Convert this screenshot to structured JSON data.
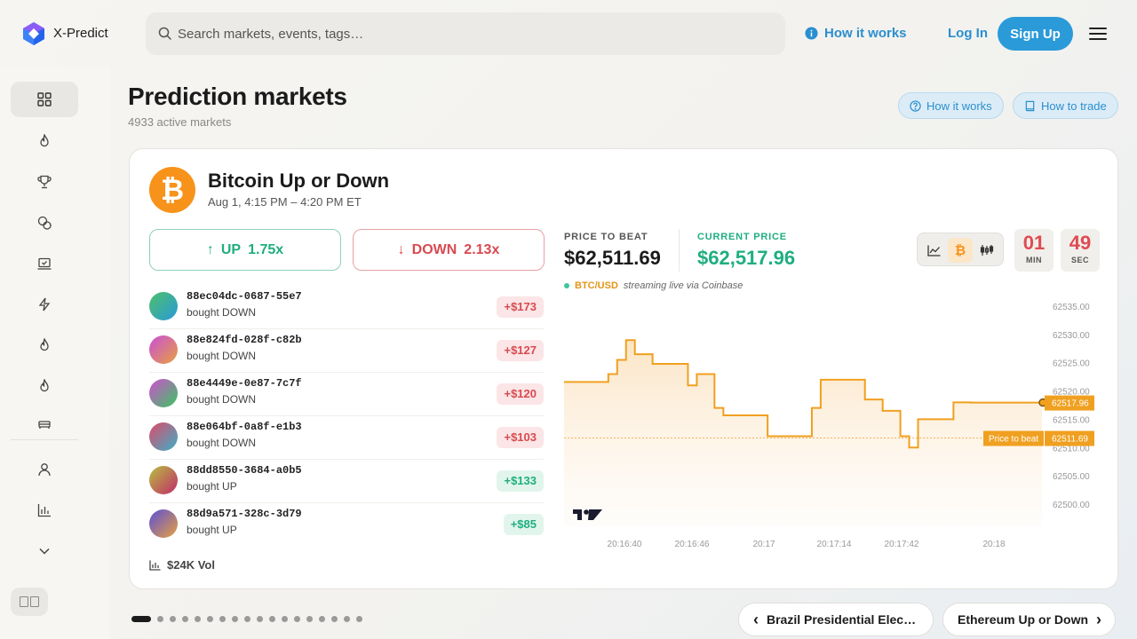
{
  "app": {
    "brand": "X-Predict"
  },
  "search": {
    "placeholder": "Search markets, events, tags…"
  },
  "header": {
    "how_it_works": "How it works",
    "login": "Log In",
    "signup": "Sign Up"
  },
  "page": {
    "title": "Prediction markets",
    "subtitle": "4933 active markets",
    "pill_how": "How it works",
    "pill_trade": "How to trade"
  },
  "market": {
    "title": "Bitcoin Up or Down",
    "date": "Aug 1, 4:15 PM – 4:20 PM ET",
    "up_label": "UP",
    "up_odds": "1.75x",
    "up_arrow": "↑",
    "down_label": "DOWN",
    "down_odds": "2.13x",
    "down_arrow": "↓",
    "volume": "$24K Vol",
    "price_to_beat_label": "PRICE TO BEAT",
    "price_to_beat": "$62,511.69",
    "current_price_label": "CURRENT PRICE",
    "current_price": "$62,517.96",
    "pair": "BTC/USD",
    "stream_text": "streaming live via Coinbase",
    "timer_min": "01",
    "timer_min_label": "MIN",
    "timer_sec": "49",
    "timer_sec_label": "SEC"
  },
  "trades": [
    {
      "id": "88ec04dc-0687-55e7",
      "action": "bought DOWN",
      "amount": "+$173",
      "tone": "red"
    },
    {
      "id": "88e824fd-028f-c82b",
      "action": "bought DOWN",
      "amount": "+$127",
      "tone": "red"
    },
    {
      "id": "88e4449e-0e87-7c7f",
      "action": "bought DOWN",
      "amount": "+$120",
      "tone": "red"
    },
    {
      "id": "88e064bf-0a8f-e1b3",
      "action": "bought DOWN",
      "amount": "+$103",
      "tone": "red"
    },
    {
      "id": "88dd8550-3684-a0b5",
      "action": "bought UP",
      "amount": "+$133",
      "tone": "green"
    },
    {
      "id": "88d9a571-328c-3d79",
      "action": "bought UP",
      "amount": "+$85",
      "tone": "green"
    }
  ],
  "colors": {
    "accent": "#2a9ad9",
    "up": "#1fae80",
    "down": "#d84a50",
    "line": "#f0a020",
    "btc": "#f7931a"
  },
  "chart_data": {
    "type": "line",
    "y_ticks": [
      "62535.00",
      "62530.00",
      "62525.00",
      "62520.00",
      "62515.00",
      "62510.00",
      "62505.00",
      "62500.00"
    ],
    "x_ticks": [
      "20:16:40",
      "20:16:46",
      "20:17",
      "20:17:14",
      "20:17:42",
      "20:18"
    ],
    "ylim": [
      62500,
      62535
    ],
    "price_to_beat": 62511.69,
    "price_to_beat_tag": "Price to beat",
    "price_to_beat_value": "62511.69",
    "current_value": "62517.96",
    "series": [
      {
        "values": [
          62521.6,
          62521.6,
          62521.6,
          62521.6,
          62521.6,
          62523,
          62525.5,
          62529,
          62526.5,
          62526.5,
          62524.8,
          62524.8,
          62524.8,
          62524.8,
          62521,
          62523,
          62523,
          62517,
          62515.7,
          62515.7,
          62515.7,
          62515.7,
          62515.7,
          62512,
          62512,
          62512,
          62512,
          62512,
          62517,
          62522,
          62522,
          62522,
          62522,
          62522,
          62518.5,
          62518.5,
          62516.5,
          62516.5,
          62512,
          62510,
          62515,
          62515,
          62515,
          62515,
          62518,
          62518,
          62517.96,
          62517.96,
          62517.96,
          62517.96,
          62517.96,
          62517.96,
          62517.96,
          62517.96,
          62517.96
        ]
      }
    ]
  }
}
